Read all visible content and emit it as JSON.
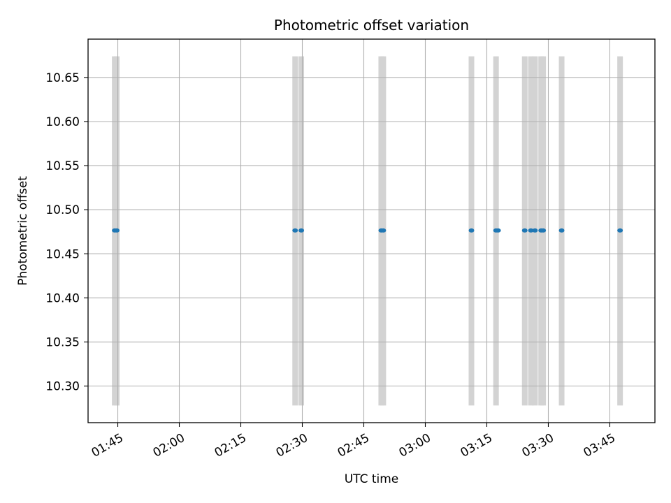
{
  "chart_data": {
    "type": "scatter",
    "title": "Photometric offset variation",
    "xlabel": "UTC time",
    "ylabel": "Photometric offset",
    "x_tick_labels": [
      "01:45",
      "02:00",
      "02:15",
      "02:30",
      "02:45",
      "03:00",
      "03:15",
      "03:30",
      "03:45"
    ],
    "y_tick_labels": [
      "10.30",
      "10.35",
      "10.40",
      "10.45",
      "10.50",
      "10.55",
      "10.60",
      "10.65"
    ],
    "xlim": [
      "01:37:45",
      "03:56:00"
    ],
    "ylim": [
      10.2585,
      10.6935
    ],
    "grid": true,
    "colors": {
      "points": "#1f77b4",
      "bands": "#d3d3d3",
      "grid": "#b0b0b0",
      "axes": "#000000"
    },
    "band_range": [
      10.278,
      10.674
    ],
    "bands": [
      "01:44:15",
      "01:44:45",
      "02:28:15",
      "02:29:45",
      "02:49:15",
      "02:49:45",
      "03:11:15",
      "03:17:15",
      "03:24:15",
      "03:25:45",
      "03:26:45",
      "03:28:15",
      "03:28:45",
      "03:33:15",
      "03:47:30"
    ],
    "points": [
      {
        "x": "01:44:15",
        "y": 10.4765
      },
      {
        "x": "01:44:45",
        "y": 10.4765
      },
      {
        "x": "02:28:15",
        "y": 10.4765
      },
      {
        "x": "02:29:45",
        "y": 10.4765
      },
      {
        "x": "02:49:15",
        "y": 10.4765
      },
      {
        "x": "02:49:45",
        "y": 10.4765
      },
      {
        "x": "03:11:15",
        "y": 10.4765
      },
      {
        "x": "03:17:15",
        "y": 10.4765
      },
      {
        "x": "03:17:45",
        "y": 10.4765
      },
      {
        "x": "03:24:15",
        "y": 10.4765
      },
      {
        "x": "03:25:45",
        "y": 10.4765
      },
      {
        "x": "03:26:45",
        "y": 10.4765
      },
      {
        "x": "03:28:15",
        "y": 10.4765
      },
      {
        "x": "03:28:45",
        "y": 10.4765
      },
      {
        "x": "03:33:15",
        "y": 10.4765
      },
      {
        "x": "03:47:30",
        "y": 10.4765
      }
    ]
  }
}
